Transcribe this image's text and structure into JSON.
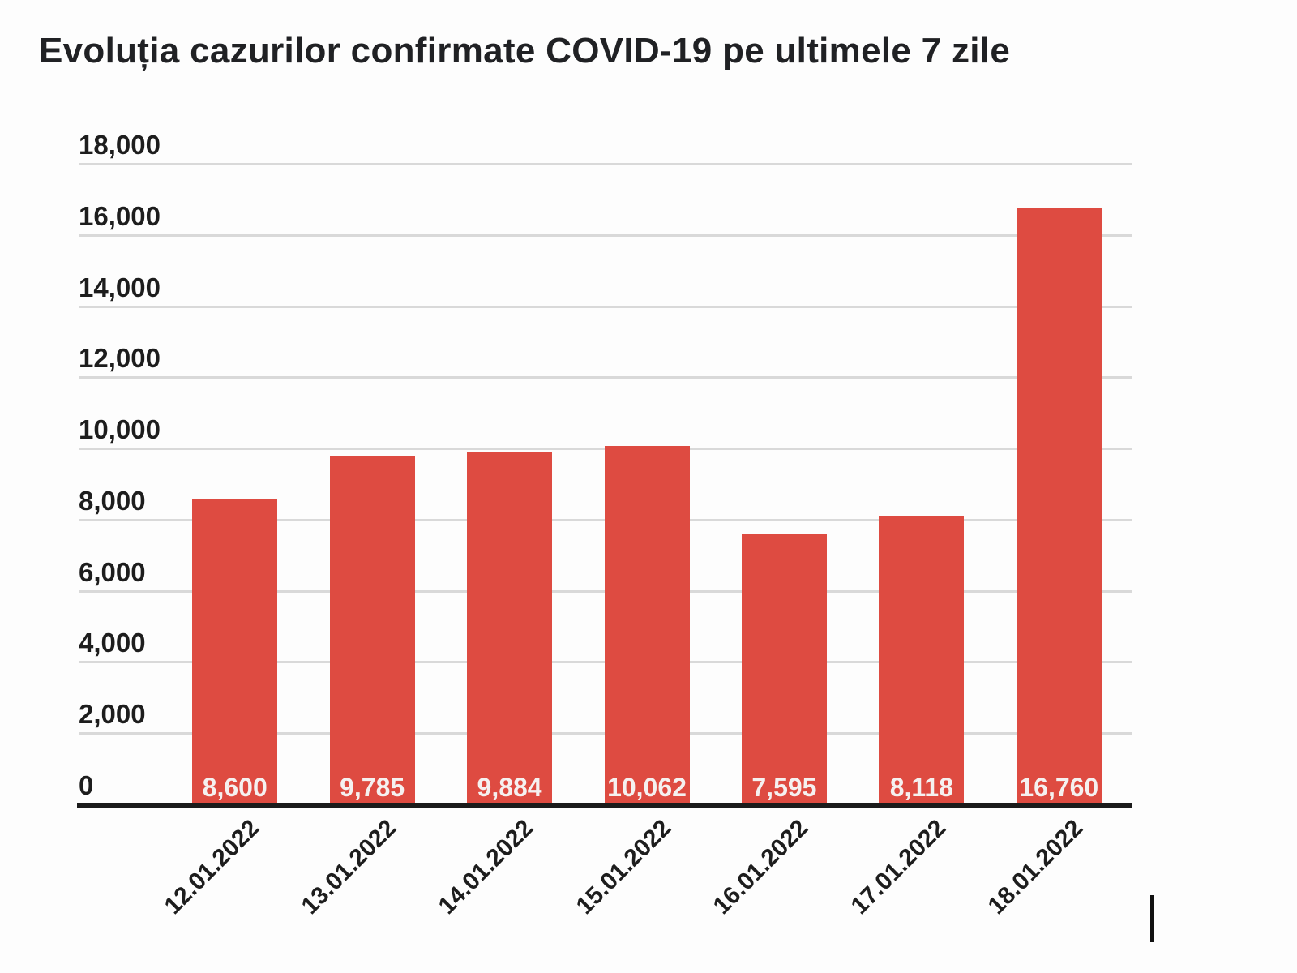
{
  "page": {
    "background": "#fdfdfd"
  },
  "colors": {
    "bar": "#de4b41",
    "gridline": "#d9d9d9",
    "axis_line": "#1b1b1b",
    "axis_text": "#1d1d1d",
    "bar_value_text": "#f5f1f0",
    "title_text": "#202124"
  },
  "text_caret": {
    "visible": true
  },
  "chart_data": {
    "type": "bar",
    "title": "Evoluția cazurilor confirmate COVID-19 pe ultimele 7 zile",
    "categories": [
      "12.01.2022",
      "13.01.2022",
      "14.01.2022",
      "15.01.2022",
      "16.01.2022",
      "17.01.2022",
      "18.01.2022"
    ],
    "values": [
      8600,
      9785,
      9884,
      10062,
      7595,
      8118,
      16760
    ],
    "value_labels": [
      "8,600",
      "9,785",
      "9,884",
      "10,062",
      "7,595",
      "8,118",
      "16,760"
    ],
    "yticks": [
      0,
      2000,
      4000,
      6000,
      8000,
      10000,
      12000,
      14000,
      16000,
      18000
    ],
    "ytick_labels": [
      "0",
      "2,000",
      "4,000",
      "6,000",
      "8,000",
      "10,000",
      "12,000",
      "14,000",
      "16,000",
      "18,000"
    ],
    "ylim": [
      0,
      18000
    ],
    "xlabel": "",
    "ylabel": "",
    "grid": true,
    "legend": false,
    "bar_value_label_position": "inside-bottom",
    "x_label_rotation_deg": -45
  }
}
